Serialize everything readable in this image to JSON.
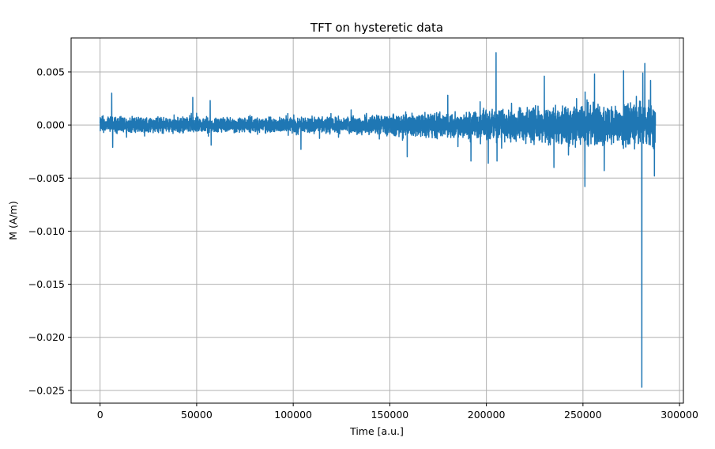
{
  "chart_data": {
    "type": "line",
    "title": "TFT on hysteretic data",
    "xlabel": "Time [a.u.]",
    "ylabel": "M (A/m)",
    "xlim": [
      -15000,
      302000
    ],
    "ylim": [
      -0.0262,
      0.0082
    ],
    "grid": true,
    "x_ticks": [
      0,
      50000,
      100000,
      150000,
      200000,
      250000,
      300000
    ],
    "x_tick_labels": [
      "0",
      "50000",
      "100000",
      "150000",
      "200000",
      "250000",
      "300000"
    ],
    "y_ticks": [
      0.005,
      0.0,
      -0.005,
      -0.01,
      -0.015,
      -0.02,
      -0.025
    ],
    "y_tick_labels": [
      "0.005",
      "0.000",
      "−0.005",
      "−0.010",
      "−0.015",
      "−0.020",
      "−0.025"
    ],
    "line_color": "#1f77b4",
    "series": [
      {
        "x_range": [
          0,
          287500
        ],
        "noise_envelope": [
          {
            "x": 0,
            "amp": 0.0009
          },
          {
            "x": 100000,
            "amp": 0.0008
          },
          {
            "x": 150000,
            "amp": 0.0011
          },
          {
            "x": 200000,
            "amp": 0.0016
          },
          {
            "x": 250000,
            "amp": 0.0022
          },
          {
            "x": 287500,
            "amp": 0.0025
          }
        ],
        "spikes": [
          {
            "x": 6000,
            "y": 0.003
          },
          {
            "x": 6500,
            "y": -0.0021
          },
          {
            "x": 48000,
            "y": 0.0026
          },
          {
            "x": 57000,
            "y": 0.0023
          },
          {
            "x": 57500,
            "y": -0.0019
          },
          {
            "x": 104000,
            "y": -0.0023
          },
          {
            "x": 159000,
            "y": -0.003
          },
          {
            "x": 180000,
            "y": 0.0028
          },
          {
            "x": 192000,
            "y": -0.0034
          },
          {
            "x": 201000,
            "y": -0.0036
          },
          {
            "x": 205000,
            "y": 0.0068
          },
          {
            "x": 205500,
            "y": -0.0034
          },
          {
            "x": 230000,
            "y": 0.0046
          },
          {
            "x": 235000,
            "y": -0.004
          },
          {
            "x": 251000,
            "y": -0.0058
          },
          {
            "x": 256000,
            "y": 0.0048
          },
          {
            "x": 261000,
            "y": -0.0043
          },
          {
            "x": 271000,
            "y": 0.0051
          },
          {
            "x": 280500,
            "y": -0.0247
          },
          {
            "x": 281000,
            "y": 0.0049
          },
          {
            "x": 282000,
            "y": 0.0058
          },
          {
            "x": 285000,
            "y": 0.0042
          },
          {
            "x": 287000,
            "y": -0.0048
          }
        ]
      }
    ]
  }
}
